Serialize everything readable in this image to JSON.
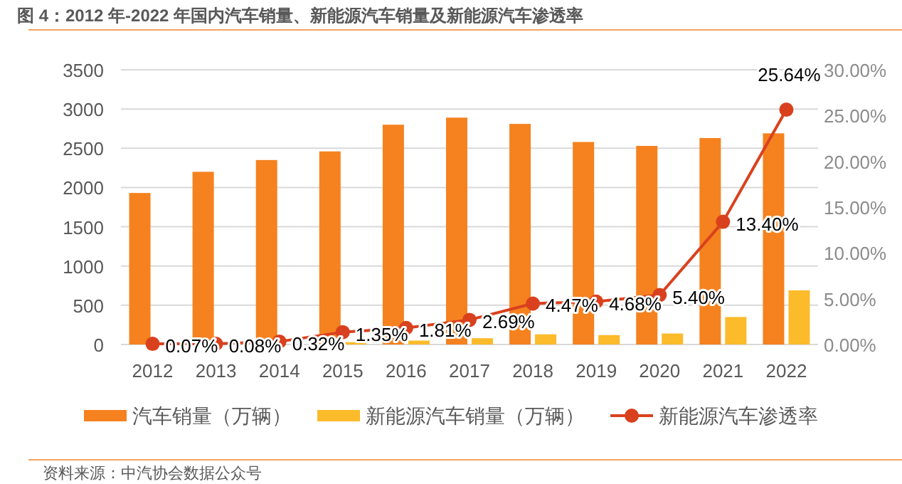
{
  "chart_data": {
    "type": "bar",
    "title": "图 4：2012 年-2022 年国内汽车销量、新能源汽车销量及新能源汽车渗透率",
    "categories": [
      "2012",
      "2013",
      "2014",
      "2015",
      "2016",
      "2017",
      "2018",
      "2019",
      "2020",
      "2021",
      "2022"
    ],
    "series": [
      {
        "name": "汽车销量（万辆）",
        "type": "bar",
        "color": "#f5821f",
        "values": [
          1930,
          2200,
          2350,
          2460,
          2800,
          2890,
          2810,
          2580,
          2530,
          2630,
          2690
        ]
      },
      {
        "name": "新能源汽车销量（万辆）",
        "type": "bar",
        "color": "#fbbb2b",
        "values": [
          0,
          0,
          null,
          30,
          50,
          80,
          130,
          120,
          140,
          350,
          690
        ]
      },
      {
        "name": "新能源汽车渗透率",
        "type": "line",
        "axis": "y2",
        "color": "#d9411e",
        "marker": "circle",
        "values": [
          0.07,
          0.08,
          0.32,
          1.35,
          1.81,
          2.69,
          4.47,
          4.68,
          5.4,
          13.4,
          25.64
        ],
        "value_labels": [
          "0.07%",
          "0.08%",
          "0.32%",
          "1.35%",
          "1.81%",
          "2.69%",
          "4.47%",
          "4.68%",
          "5.40%",
          "13.40%",
          "25.64%"
        ]
      }
    ],
    "ylim": [
      0,
      3500
    ],
    "yticks": [
      0,
      500,
      1000,
      1500,
      2000,
      2500,
      3000,
      3500
    ],
    "y2lim": [
      0,
      30
    ],
    "y2ticks": [
      {
        "value": 0,
        "label": "0.00%"
      },
      {
        "value": 5,
        "label": "5.00%"
      },
      {
        "value": 10,
        "label": "10.00%"
      },
      {
        "value": 15,
        "label": "15.00%"
      },
      {
        "value": 20,
        "label": "20.00%"
      },
      {
        "value": 25,
        "label": "25.00%"
      },
      {
        "value": 30,
        "label": "30.00%"
      }
    ],
    "grid": "y",
    "legend": "bottom",
    "annotations": [
      "资料来源：中汽协会数据公众号"
    ]
  }
}
